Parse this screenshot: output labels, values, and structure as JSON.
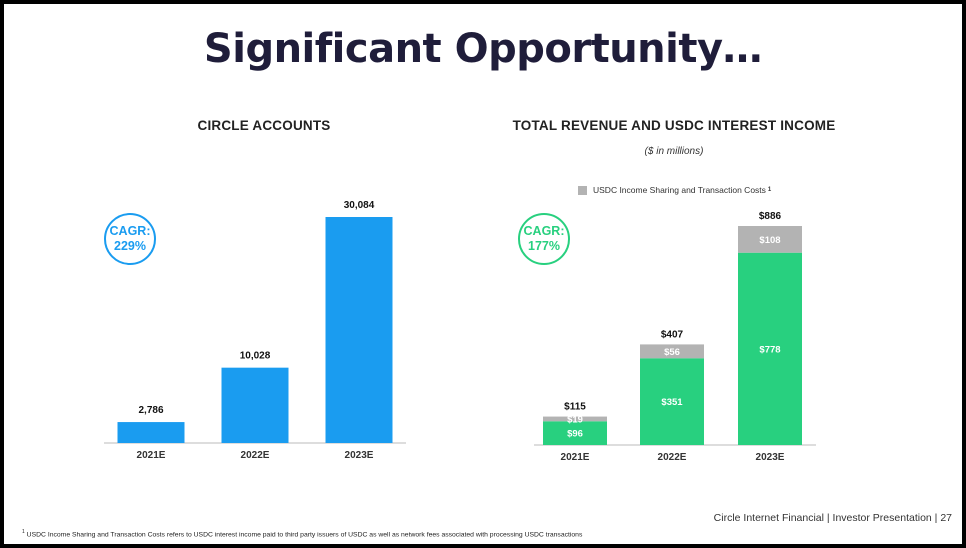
{
  "title": "Significant Opportunity…",
  "footer": "Circle Internet Financial | Investor Presentation | 27",
  "footnote": {
    "marker": "1",
    "text": "USDC Income Sharing and Transaction Costs refers to USDC interest income paid to third party issuers of USDC as well as network fees associated with processing USDC transactions"
  },
  "colors": {
    "blue": "#1a9cf0",
    "green": "#28d07f",
    "gray": "#b3b3b3"
  },
  "chart_data": [
    {
      "type": "bar",
      "title": "CIRCLE ACCOUNTS",
      "categories": [
        "2021E",
        "2022E",
        "2023E"
      ],
      "values": [
        2786,
        10028,
        30084
      ],
      "value_labels": [
        "2,786",
        "10,028",
        "30,084"
      ],
      "ylim": [
        0,
        30084
      ],
      "grid": false,
      "cagr": {
        "line1": "CAGR:",
        "line2": "229%"
      }
    },
    {
      "type": "bar",
      "stacked": true,
      "title": "TOTAL REVENUE AND USDC INTEREST INCOME",
      "subtitle": "($ in millions)",
      "categories": [
        "2021E",
        "2022E",
        "2023E"
      ],
      "series": [
        {
          "values": [
            96,
            351,
            778
          ],
          "labels": [
            "$96",
            "$351",
            "$778"
          ]
        },
        {
          "name": "USDC Income Sharing and Transaction Costs",
          "values": [
            19,
            56,
            108
          ],
          "labels": [
            "$19",
            "$56",
            "$108"
          ]
        }
      ],
      "totals": [
        115,
        407,
        886
      ],
      "total_labels": [
        "$115",
        "$407",
        "$886"
      ],
      "legend": {
        "label": "USDC Income Sharing and Transaction Costs",
        "marker": "1",
        "position": "top"
      },
      "ylim": [
        0,
        886
      ],
      "grid": false,
      "cagr": {
        "line1": "CAGR:",
        "line2": "177%"
      }
    }
  ]
}
